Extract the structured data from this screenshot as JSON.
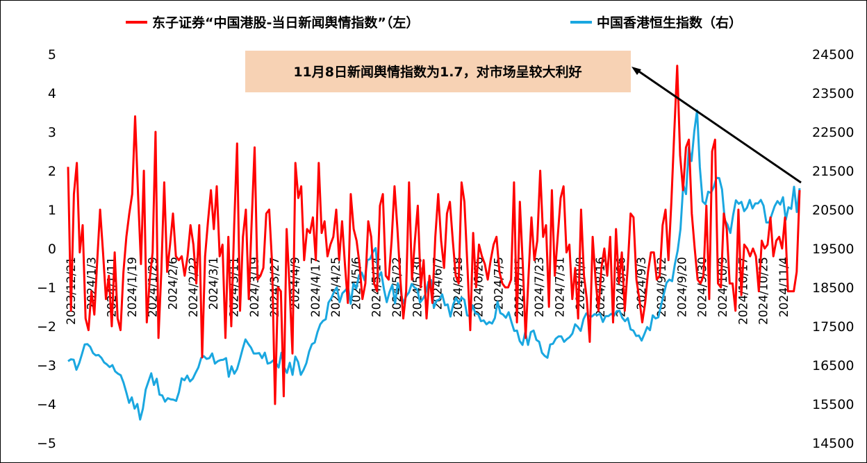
{
  "chart_data": {
    "type": "line",
    "title": "",
    "series": [
      {
        "name": "东子证券“中国港股-当日新闻舆情指数”（左）",
        "axis": "left",
        "color": "#ff0000",
        "values": [
          2.1,
          -1.6,
          1.4,
          2.2,
          -0.1,
          0.6,
          -1.8,
          -2.1,
          -1.1,
          -1.7,
          -0.3,
          1.0,
          -0.1,
          -1.3,
          -0.7,
          -2.0,
          -0.1,
          -1.8,
          -2.1,
          -0.6,
          0.3,
          0.9,
          1.4,
          3.4,
          1.4,
          -0.4,
          2.0,
          -1.9,
          -0.8,
          -0.1,
          3.0,
          -2.3,
          -0.6,
          1.7,
          -0.6,
          0.1,
          0.9,
          -0.2,
          -0.3,
          -0.2,
          -0.7,
          -0.2,
          0.6,
          0.1,
          -0.9,
          0.6,
          -2.8,
          -0.2,
          0.7,
          1.5,
          0.5,
          1.6,
          -0.2,
          0.1,
          -2.3,
          0.3,
          -2.0,
          0.6,
          2.7,
          -1.6,
          0.3,
          1.0,
          -1.3,
          0.7,
          2.6,
          -0.8,
          -0.7,
          -0.5,
          0.9,
          1.0,
          -0.4,
          -4.0,
          -1.0,
          -1.1,
          -3.8,
          0.5,
          -1.0,
          -2.7,
          2.2,
          1.3,
          1.6,
          -0.3,
          0.5,
          0.4,
          0.8,
          -0.3,
          2.2,
          0.4,
          0.7,
          -0.2,
          0.1,
          0.3,
          1.0,
          -0.3,
          0.7,
          -0.4,
          -1.4,
          1.4,
          0.5,
          0.2,
          -0.4,
          -1.3,
          -0.9,
          0.7,
          0.3,
          -0.9,
          -1.1,
          1.1,
          1.4,
          -0.7,
          -0.8,
          0.2,
          1.6,
          0.5,
          -0.8,
          -1.8,
          -1.1,
          1.7,
          -0.8,
          0.2,
          1.1,
          -1.0,
          -0.3,
          -1.8,
          -0.7,
          -1.4,
          0.3,
          1.4,
          0.2,
          -0.5,
          0.9,
          1.2,
          0.2,
          -0.7,
          -0.9,
          1.7,
          1.2,
          -0.4,
          -2.1,
          0.4,
          -1.0,
          0.1,
          -0.2,
          -0.4,
          -0.8,
          -0.3,
          0.1,
          0.3,
          -0.6,
          -0.9,
          -1.0,
          -1.0,
          -0.8,
          1.7,
          -1.9,
          1.2,
          -0.4,
          -2.3,
          -0.7,
          0.8,
          -0.3,
          0.2,
          2.0,
          0.3,
          0.6,
          -1.5,
          1.5,
          -0.7,
          0.3,
          1.3,
          1.6,
          -0.1,
          0.1,
          -1.3,
          -0.5,
          -1.8,
          1.0,
          -0.7,
          -1.3,
          -2.4,
          0.3,
          -0.8,
          -1.6,
          -0.5,
          0.0,
          -0.7,
          0.3,
          -1.9,
          0.5,
          -0.9,
          -0.1,
          -1.6,
          -0.5,
          0.9,
          0.8,
          -0.8,
          -1.3,
          -1.9,
          -1.4,
          -0.6,
          -0.1,
          -0.1,
          -0.8,
          -0.7,
          0.6,
          1.0,
          -0.3,
          1.2,
          3.0,
          4.7,
          2.4,
          1.5,
          2.6,
          2.8,
          0.9,
          0.0,
          -0.8,
          -0.9,
          -0.7,
          1.1,
          -1.3,
          2.5,
          2.8,
          -0.9,
          -1.0,
          0.9,
          0.5,
          -0.9,
          -0.9,
          -1.6,
          1.0,
          -1.2,
          0.1,
          0.0,
          -0.2,
          0.0,
          -0.2,
          -1.1,
          0.2,
          0.0,
          0.1,
          0.8,
          -0.2,
          0.2,
          0.3,
          0.0,
          0.8,
          -1.1,
          -1.1,
          -1.1,
          -0.6,
          1.5
        ]
      },
      {
        "name": "中国香港恒生指数（右）",
        "axis": "right",
        "color": "#1aa7e0",
        "values": [
          16600,
          16650,
          16640,
          16380,
          16550,
          16780,
          17030,
          17040,
          16970,
          16810,
          16750,
          16760,
          16690,
          16570,
          16520,
          16450,
          16500,
          16340,
          16280,
          16240,
          16050,
          15800,
          15530,
          15670,
          15380,
          15500,
          15100,
          15380,
          15870,
          16080,
          16290,
          15990,
          16150,
          15740,
          15720,
          15560,
          15650,
          15620,
          15610,
          15580,
          15800,
          16160,
          16110,
          16230,
          16080,
          16150,
          16300,
          16440,
          16680,
          16730,
          16660,
          16680,
          16800,
          16540,
          16600,
          16630,
          16640,
          16680,
          16200,
          16470,
          16280,
          16400,
          16650,
          16920,
          17160,
          17050,
          16950,
          16800,
          16800,
          16810,
          16680,
          16820,
          16540,
          16560,
          16620,
          16560,
          16440,
          16820,
          16440,
          16300,
          16560,
          16250,
          16720,
          16580,
          16250,
          16380,
          16550,
          16850,
          17040,
          17080,
          17350,
          17550,
          17640,
          17680,
          18110,
          18220,
          18390,
          18500,
          18120,
          18350,
          18420,
          18510,
          18080,
          18600,
          18470,
          18810,
          18880,
          18680,
          19200,
          19230,
          19410,
          19510,
          18760,
          18890,
          18450,
          18120,
          18380,
          18560,
          18090,
          18610,
          18400,
          18090,
          18270,
          18370,
          18590,
          18500,
          18450,
          18110,
          18200,
          18320,
          18640,
          18690,
          17980,
          18160,
          18190,
          18320,
          18040,
          18060,
          17750,
          18060,
          18230,
          18090,
          18240,
          18180,
          17780,
          17760,
          18040,
          17830,
          17810,
          17630,
          17650,
          17550,
          17610,
          17570,
          17710,
          18130,
          17840,
          17800,
          17720,
          17860,
          17610,
          17380,
          17390,
          17120,
          17020,
          17350,
          17020,
          17350,
          17390,
          17150,
          17100,
          16820,
          16740,
          16690,
          17030,
          17050,
          17180,
          17240,
          17240,
          17100,
          17170,
          17220,
          17310,
          17550,
          17480,
          17380,
          17680,
          17830,
          17760,
          17750,
          17810,
          17790,
          17820,
          17610,
          17760,
          17760,
          17820,
          17770,
          17890,
          17900,
          17720,
          17630,
          17710,
          17420,
          17390,
          17250,
          17260,
          17130,
          17300,
          17480,
          17400,
          17780,
          17700,
          17730,
          18040,
          18330,
          18620,
          18700,
          18660,
          19100,
          19450,
          20000,
          21140,
          20900,
          22100,
          21750,
          22520,
          23050,
          21590,
          20710,
          20640,
          20960,
          20930,
          21080,
          21320,
          21310,
          21020,
          20230,
          20110,
          19900,
          20360,
          20740,
          20650,
          20700,
          20460,
          20550,
          20750,
          20530,
          20660,
          20660,
          20750,
          20600,
          20170,
          20170,
          20380,
          20590,
          20720,
          20630,
          20820,
          20240,
          20560,
          20520,
          21090,
          20440,
          21050
        ]
      }
    ],
    "x_tick_labels": [
      "2023/12/21",
      "2024/1/3",
      "2024/1/11",
      "2024/1/19",
      "2024/1/29",
      "2024/2/6",
      "2024/2/22",
      "2024/3/1",
      "2024/3/11",
      "2024/3/19",
      "2024/3/27",
      "2024/4/9",
      "2024/4/17",
      "2024/4/25",
      "2024/5/6",
      "2024/5/14",
      "2024/5/22",
      "2024/5/30",
      "2024/6/7",
      "2024/6/18",
      "2024/6/26",
      "2024/7/5",
      "2024/7/15",
      "2024/7/23",
      "2024/7/31",
      "2024/8/8",
      "2024/8/16",
      "2024/8/26",
      "2024/9/3",
      "2024/9/12",
      "2024/9/20",
      "2024/9/30",
      "2024/10/9",
      "2024/10/17",
      "2024/10/25",
      "2024/11/4"
    ],
    "y_left": {
      "min": -5,
      "max": 5,
      "step": 1,
      "tick_labels": [
        "5",
        "4",
        "3",
        "2",
        "1",
        "0",
        "−1",
        "−2",
        "−3",
        "−4",
        "−5"
      ]
    },
    "y_right": {
      "min": 14500,
      "max": 24500,
      "step": 1000,
      "tick_labels": [
        "24500",
        "23500",
        "22500",
        "21500",
        "20500",
        "19500",
        "18500",
        "17500",
        "16500",
        "15500",
        "14500"
      ]
    },
    "grid": false,
    "legend_position": "top",
    "annotation": {
      "text": "11月8日新闻舆情指数为1.7，对市场呈较大利好",
      "background": "#f7d2b4"
    }
  }
}
